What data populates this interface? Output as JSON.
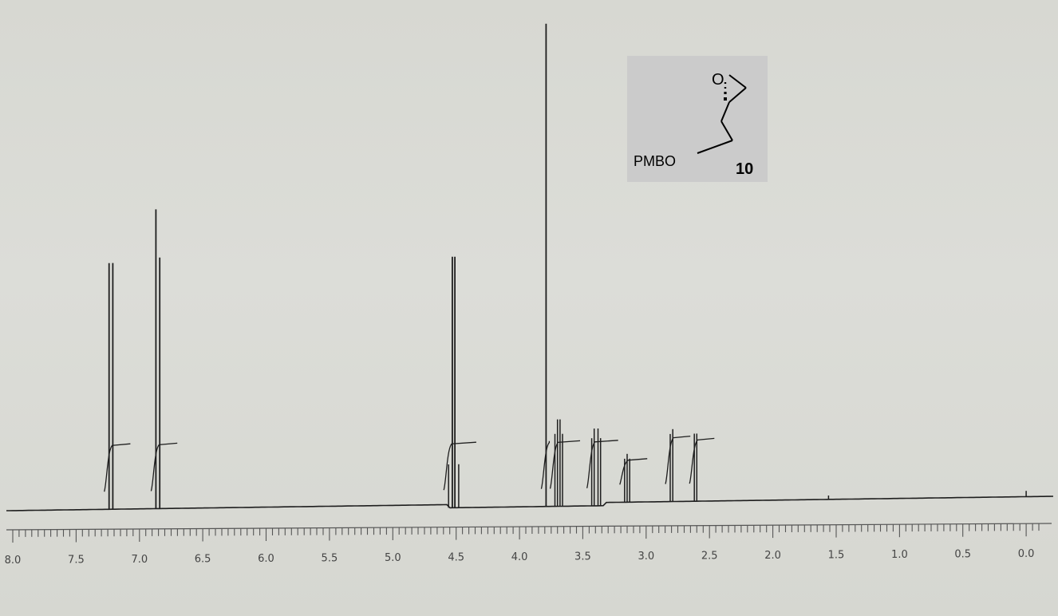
{
  "chart_data": {
    "type": "line",
    "title": "",
    "xlabel": "",
    "ylabel": "",
    "xlim": [
      8.0,
      -0.1
    ],
    "x_reversed": true,
    "ticks": [
      {
        "label": "8.0",
        "value": 8.0
      },
      {
        "label": "7.5",
        "value": 7.5
      },
      {
        "label": "7.0",
        "value": 7.0
      },
      {
        "label": "6.5",
        "value": 6.5
      },
      {
        "label": "6.0",
        "value": 6.0
      },
      {
        "label": "5.5",
        "value": 5.5
      },
      {
        "label": "5.0",
        "value": 5.0
      },
      {
        "label": "4.5",
        "value": 4.5
      },
      {
        "label": "4.0",
        "value": 4.0
      },
      {
        "label": "3.5",
        "value": 3.5
      },
      {
        "label": "3.0",
        "value": 3.0
      },
      {
        "label": "2.5",
        "value": 2.5
      },
      {
        "label": "2.0",
        "value": 2.0
      },
      {
        "label": "1.5",
        "value": 1.5
      },
      {
        "label": "1.0",
        "value": 1.0
      },
      {
        "label": "0.5",
        "value": 0.5
      },
      {
        "label": "0.0",
        "value": 0.0
      }
    ],
    "peaks": [
      {
        "group": "aromatic-a",
        "lines": [
          {
            "ppm": 7.24,
            "h": 0.51
          },
          {
            "ppm": 7.21,
            "h": 0.51
          }
        ],
        "integral": true
      },
      {
        "group": "aromatic-b",
        "lines": [
          {
            "ppm": 6.87,
            "h": 0.62
          },
          {
            "ppm": 6.84,
            "h": 0.52
          }
        ],
        "integral": true
      },
      {
        "group": "benzylic",
        "lines": [
          {
            "ppm": 4.56,
            "h": 0.09
          },
          {
            "ppm": 4.53,
            "h": 0.52
          },
          {
            "ppm": 4.51,
            "h": 0.52
          },
          {
            "ppm": 4.48,
            "h": 0.09
          }
        ],
        "integral": true
      },
      {
        "group": "methoxy",
        "lines": [
          {
            "ppm": 3.79,
            "h": 1.0
          }
        ],
        "integral": true
      },
      {
        "group": "och2-a",
        "lines": [
          {
            "ppm": 3.72,
            "h": 0.15
          },
          {
            "ppm": 3.7,
            "h": 0.18
          },
          {
            "ppm": 3.68,
            "h": 0.18
          },
          {
            "ppm": 3.66,
            "h": 0.15
          }
        ],
        "integral": true
      },
      {
        "group": "och2-b",
        "lines": [
          {
            "ppm": 3.43,
            "h": 0.14
          },
          {
            "ppm": 3.41,
            "h": 0.16
          },
          {
            "ppm": 3.38,
            "h": 0.16
          },
          {
            "ppm": 3.36,
            "h": 0.14
          }
        ],
        "integral": true
      },
      {
        "group": "epoxide-ch",
        "lines": [
          {
            "ppm": 3.17,
            "h": 0.09
          },
          {
            "ppm": 3.15,
            "h": 0.1
          },
          {
            "ppm": 3.13,
            "h": 0.09
          }
        ],
        "integral": true
      },
      {
        "group": "epoxide-ch2-a",
        "lines": [
          {
            "ppm": 2.81,
            "h": 0.14
          },
          {
            "ppm": 2.79,
            "h": 0.15
          }
        ],
        "integral": true
      },
      {
        "group": "epoxide-ch2-b",
        "lines": [
          {
            "ppm": 2.62,
            "h": 0.14
          },
          {
            "ppm": 2.6,
            "h": 0.14
          }
        ],
        "integral": true
      },
      {
        "group": "water",
        "lines": [
          {
            "ppm": 1.56,
            "h": 0.008
          }
        ],
        "integral": false
      },
      {
        "group": "tms",
        "lines": [
          {
            "ppm": 0.0,
            "h": 0.012
          }
        ],
        "integral": false
      }
    ],
    "grid": false
  },
  "structure": {
    "substituent_label": "PMBO",
    "ring_atom_label": "O",
    "compound_number": "10",
    "stereo": "hashed-wedge"
  },
  "colors": {
    "trace": "#1e1e1e",
    "paper": "#d9dad5",
    "structure_card": "#cbcbcb"
  }
}
